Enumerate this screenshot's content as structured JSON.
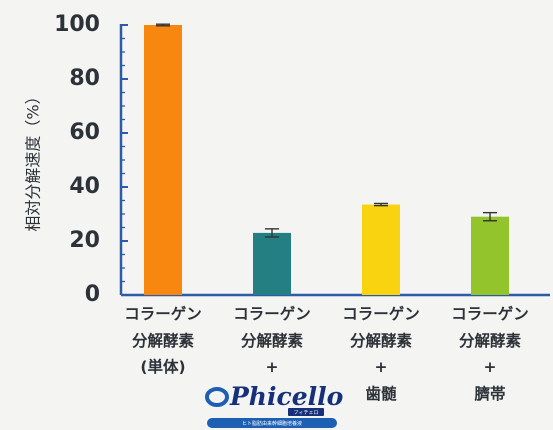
{
  "chart_data": {
    "type": "bar",
    "categories": [
      [
        "コラーゲン",
        "分解酵素",
        "(単体)"
      ],
      [
        "コラーゲン",
        "分解酵素",
        "+"
      ],
      [
        "コラーゲン",
        "分解酵素",
        "+",
        "歯髄"
      ],
      [
        "コラーゲン",
        "分解酵素",
        "+",
        "臍帯"
      ]
    ],
    "values": [
      100,
      23,
      33.5,
      29
    ],
    "errors": [
      0.3,
      1.5,
      0.4,
      1.5
    ],
    "colors": [
      "#f7870f",
      "#237f82",
      "#f9d310",
      "#93c42c"
    ],
    "ylabel": "相対分解速度（%）",
    "ylim": [
      0,
      100
    ],
    "yticks": [
      0,
      20,
      40,
      60,
      80,
      100
    ],
    "grid": false
  },
  "logo": {
    "name": "Phicello",
    "kana": "フィチェロ",
    "tagline": "ヒト脂肪由来幹細胞培養液"
  }
}
